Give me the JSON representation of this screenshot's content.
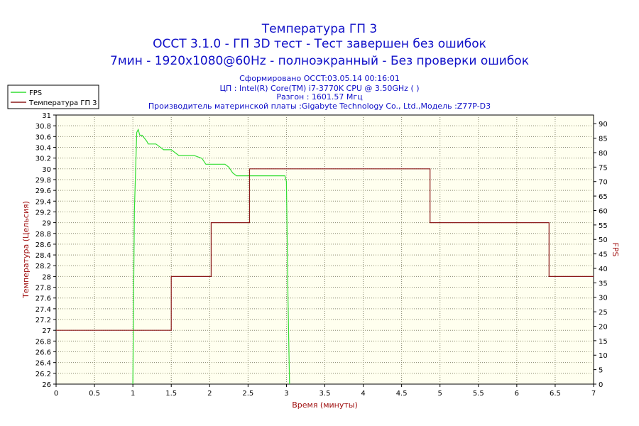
{
  "header": {
    "title_lines": [
      "Температура ГП 3",
      "OCCT 3.1.0 - ГП 3D тест - Тест завершен без ошибок",
      "7мин - 1920x1080@60Hz - полноэкранный - Без проверки ошибок"
    ],
    "info_lines": [
      "Сформировано OCCT:03.05.14 00:16:01",
      "ЦП : Intel(R) Core(TM) i7-3770K CPU @ 3.50GHz (  )",
      "Разгон : 1601.57 Мгц",
      "Производитель материнской платы :Gigabyte Technology Co., Ltd.,Модель :Z77P-D3"
    ]
  },
  "colors": {
    "fps": "#33dd33",
    "temperature": "#8b1a1a",
    "title": "#1010c8",
    "axis_label": "#a01010",
    "grid": "#8a8a6a"
  },
  "chart_data": {
    "type": "line",
    "title": "Температура ГП 3",
    "xlabel": "Время (минуты)",
    "ylabel_left": "Температура (Цельсия)",
    "ylabel_right": "FPS",
    "xlim": [
      0,
      7
    ],
    "ylim_left": [
      26,
      31
    ],
    "ylim_right": [
      0,
      93
    ],
    "x_ticks": [
      "0",
      "0.5",
      "1",
      "1.5",
      "2",
      "2.5",
      "3",
      "3.5",
      "4",
      "4.5",
      "5",
      "5.5",
      "6",
      "6.5",
      "7"
    ],
    "y_left_ticks": [
      "26",
      "26.2",
      "26.4",
      "26.6",
      "26.8",
      "27",
      "27.2",
      "27.4",
      "27.6",
      "27.8",
      "28",
      "28.2",
      "28.4",
      "28.6",
      "28.8",
      "29",
      "29.2",
      "29.4",
      "29.6",
      "29.8",
      "30",
      "30.2",
      "30.4",
      "30.6",
      "30.8",
      "31"
    ],
    "y_right_ticks": [
      "0",
      "5",
      "10",
      "15",
      "20",
      "25",
      "30",
      "35",
      "40",
      "45",
      "50",
      "55",
      "60",
      "65",
      "70",
      "75",
      "80",
      "85",
      "90"
    ],
    "grid": true,
    "legend": "top-left",
    "series": [
      {
        "name": "FPS",
        "axis": "right",
        "x": [
          1.0,
          1.02,
          1.05,
          1.07,
          1.09,
          1.12,
          1.15,
          1.18,
          1.2,
          1.25,
          1.3,
          1.35,
          1.4,
          1.45,
          1.5,
          1.55,
          1.6,
          1.65,
          1.7,
          1.8,
          1.9,
          1.95,
          2.0,
          2.1,
          2.2,
          2.25,
          2.3,
          2.35,
          2.45,
          2.55,
          2.65,
          2.75,
          2.85,
          2.95,
          2.98,
          3.0,
          3.02,
          3.04
        ],
        "y": [
          0,
          60,
          87,
          88,
          86,
          86,
          85,
          84,
          83,
          83,
          83,
          82,
          81,
          81,
          81,
          80,
          79,
          79,
          79,
          79,
          78,
          76,
          76,
          76,
          76,
          75,
          73,
          72,
          72,
          72,
          72,
          72,
          72,
          72,
          72,
          70,
          30,
          0
        ]
      },
      {
        "name": "Температура ГП 3",
        "axis": "left",
        "x": [
          0.0,
          1.5,
          1.5,
          2.02,
          2.02,
          2.52,
          2.52,
          4.87,
          4.87,
          6.42,
          6.42,
          7.0
        ],
        "y": [
          27,
          27,
          28,
          28,
          29,
          29,
          30,
          30,
          29,
          29,
          28,
          28
        ]
      }
    ]
  }
}
